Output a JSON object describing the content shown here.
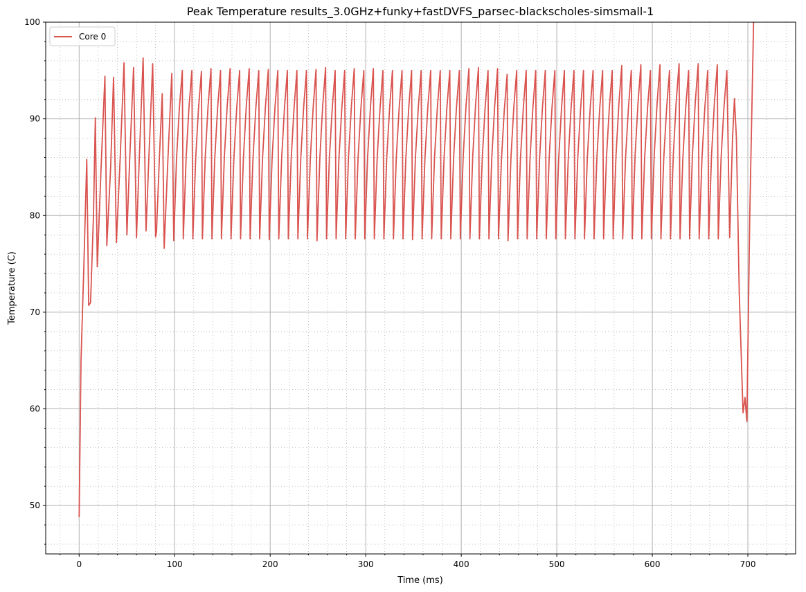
{
  "chart_data": {
    "type": "line",
    "title": "Peak Temperature results_3.0GHz+funky+fastDVFS_parsec-blackscholes-simsmall-1",
    "xlabel": "Time (ms)",
    "ylabel": "Temperature (C)",
    "xlim": [
      -35,
      750
    ],
    "ylim": [
      45,
      100
    ],
    "x_ticks": [
      0,
      100,
      200,
      300,
      400,
      500,
      600,
      700
    ],
    "y_ticks": [
      50,
      60,
      70,
      80,
      90,
      100
    ],
    "grid": "major solid, minor dotted",
    "legend_position": "upper-left",
    "series": [
      {
        "name": "Core 0",
        "color": "#d9534f",
        "description_of_shape": "sawtooth oscillation",
        "points": [
          [
            0,
            48.8
          ],
          [
            2,
            65
          ],
          [
            5,
            75
          ],
          [
            8,
            85.8
          ],
          [
            10,
            70.7
          ],
          [
            12,
            71
          ],
          [
            15,
            80
          ],
          [
            17,
            90.1
          ],
          [
            19,
            74.7
          ],
          [
            23,
            85
          ],
          [
            27,
            94.4
          ],
          [
            29,
            76.9
          ],
          [
            33,
            85
          ],
          [
            36,
            94.3
          ],
          [
            39,
            77.2
          ],
          [
            43,
            86
          ],
          [
            47,
            95.8
          ],
          [
            50,
            78
          ],
          [
            53,
            86
          ],
          [
            57,
            95.3
          ],
          [
            60,
            77.7
          ],
          [
            63,
            86
          ],
          [
            67,
            96.3
          ],
          [
            70,
            78.4
          ],
          [
            73,
            86
          ],
          [
            77,
            95.7
          ],
          [
            80,
            77.8
          ],
          [
            81,
            78.3
          ],
          [
            84,
            86
          ],
          [
            87,
            92.6
          ],
          [
            89,
            76.6
          ],
          [
            93,
            86
          ],
          [
            97,
            94.7
          ],
          [
            99,
            77.4
          ]
        ],
        "cycle_period_ms": 10,
        "cycle_min": 77.6,
        "cycle_max": 95.0,
        "cycles_from_ms": 99,
        "cycles_to_ms": 678,
        "tail_points": [
          [
            678,
            95.0
          ],
          [
            681,
            77.7
          ],
          [
            684,
            88
          ],
          [
            686,
            92.1
          ],
          [
            688,
            88
          ],
          [
            691,
            72
          ],
          [
            695,
            59.6
          ],
          [
            697,
            61.2
          ],
          [
            699,
            58.7
          ],
          [
            702,
            80
          ],
          [
            706,
            100
          ],
          [
            708,
            103
          ]
        ],
        "peak_overrides": {
          "128": 94.9,
          "138": 95.2,
          "158": 95.2,
          "178": 95.2,
          "198": 95.1,
          "248": 95.1,
          "258": 95.3,
          "288": 95.2,
          "308": 95.2,
          "408": 95.2,
          "418": 95.3,
          "438": 95.2,
          "448": 94.6,
          "568": 95.5,
          "588": 95.6,
          "608": 95.6,
          "628": 95.7,
          "648": 95.7,
          "668": 95.6
        },
        "trough_overrides": {
          "99": 77.4,
          "199": 77.5,
          "249": 77.4,
          "349": 77.5,
          "449": 77.4,
          "549": 77.6
        }
      }
    ]
  }
}
